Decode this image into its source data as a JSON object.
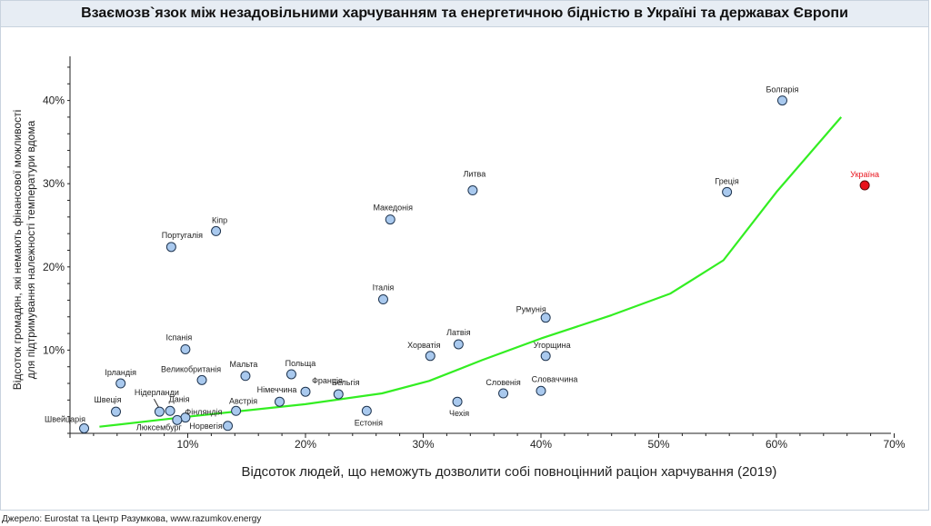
{
  "chart_data": {
    "type": "scatter",
    "title": "Взаємозв`язок між незадовільними харчуванням та енергетичною бідністю в Україні та державах Європи",
    "xlabel": "Відсоток людей, що неможуть дозволити собі повноцінний раціон харчування (2019)",
    "ylabel_lines": [
      "Відсоток громадян, які немають фінансової можливості",
      "для підтримування належності температури вдома"
    ],
    "xlim": [
      0,
      70
    ],
    "ylim": [
      0,
      45
    ],
    "x_ticks": [
      10,
      20,
      30,
      40,
      50,
      60,
      70
    ],
    "y_ticks": [
      10,
      20,
      30,
      40
    ],
    "x_tick_labels": [
      "10%",
      "20%",
      "30%",
      "40%",
      "50%",
      "60%",
      "70%"
    ],
    "y_tick_labels": [
      "10%",
      "20%",
      "30%",
      "40%"
    ],
    "grid": false,
    "colors": {
      "point_fill": "#a9c9ee",
      "point_stroke": "#1f3550",
      "highlight_fill": "#e8121b",
      "highlight_stroke": "#5a0b0b",
      "highlight_label": "#e8121b",
      "trend": "#33ee22"
    },
    "points": [
      {
        "name": "Болгарія",
        "x": 60.5,
        "y": 40.0
      },
      {
        "name": "Україна",
        "x": 67.5,
        "y": 29.8,
        "highlight": true
      },
      {
        "name": "Греція",
        "x": 55.8,
        "y": 29.0
      },
      {
        "name": "Литва",
        "x": 34.2,
        "y": 29.2
      },
      {
        "name": "Македонія",
        "x": 27.2,
        "y": 25.7
      },
      {
        "name": "Кіпр",
        "x": 12.4,
        "y": 24.3
      },
      {
        "name": "Португалія",
        "x": 8.6,
        "y": 22.4
      },
      {
        "name": "Італія",
        "x": 26.6,
        "y": 16.1
      },
      {
        "name": "Румунія",
        "x": 40.4,
        "y": 13.9
      },
      {
        "name": "Латвія",
        "x": 33.0,
        "y": 10.7
      },
      {
        "name": "Іспанія",
        "x": 9.8,
        "y": 10.1
      },
      {
        "name": "Хорватія",
        "x": 30.6,
        "y": 9.3
      },
      {
        "name": "Угорщина",
        "x": 40.4,
        "y": 9.3
      },
      {
        "name": "Польща",
        "x": 18.8,
        "y": 7.1
      },
      {
        "name": "Мальта",
        "x": 14.9,
        "y": 6.9
      },
      {
        "name": "Великобританія",
        "x": 11.2,
        "y": 6.4
      },
      {
        "name": "Ірландія",
        "x": 4.3,
        "y": 6.0
      },
      {
        "name": "Словаччина",
        "x": 40.0,
        "y": 5.1
      },
      {
        "name": "Франція",
        "x": 20.0,
        "y": 5.0
      },
      {
        "name": "Словенія",
        "x": 36.8,
        "y": 4.8
      },
      {
        "name": "Бельгія",
        "x": 22.8,
        "y": 4.7
      },
      {
        "name": "Німеччина",
        "x": 17.8,
        "y": 3.8
      },
      {
        "name": "Чехія",
        "x": 32.9,
        "y": 3.8
      },
      {
        "name": "Австрія",
        "x": 14.1,
        "y": 2.7
      },
      {
        "name": "Естонія",
        "x": 25.2,
        "y": 2.7
      },
      {
        "name": "Швеція",
        "x": 3.9,
        "y": 2.6
      },
      {
        "name": "Данія",
        "x": 8.5,
        "y": 2.7
      },
      {
        "name": "Нідерланди",
        "x": 7.6,
        "y": 2.6
      },
      {
        "name": "Фінляндія",
        "x": 9.8,
        "y": 1.9
      },
      {
        "name": "Люксембург",
        "x": 9.1,
        "y": 1.6
      },
      {
        "name": "Норвегія",
        "x": 13.4,
        "y": 0.9
      },
      {
        "name": "Швейцарія",
        "x": 1.2,
        "y": 0.6
      }
    ],
    "trend": {
      "x": [
        2.5,
        10,
        20,
        26.5,
        30.5,
        35,
        40,
        46,
        51,
        55.5,
        60,
        65.5
      ],
      "y": [
        0.8,
        2.0,
        3.5,
        4.8,
        6.3,
        8.8,
        11.4,
        14.2,
        16.8,
        20.8,
        29.0,
        38.0
      ]
    }
  },
  "footer": {
    "source": "Джерело: Eurostat та Центр Разумкова, www.razumkov.energy"
  }
}
